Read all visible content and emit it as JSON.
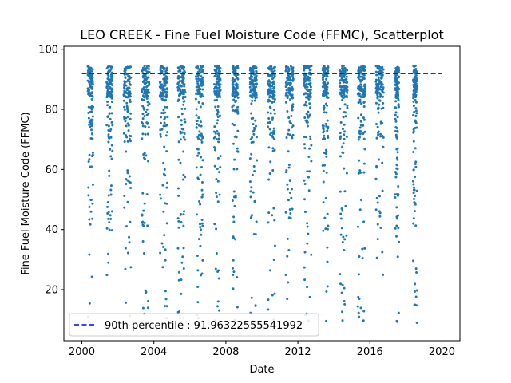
{
  "chart_data": {
    "type": "scatter",
    "title": "LEO CREEK - Fine Fuel Moisture Code (FFMC), Scatterplot",
    "xlabel": "Date",
    "ylabel": "Fine Fuel Moisture Code (FFMC)",
    "xlim": [
      1999.0,
      2021.0
    ],
    "ylim": [
      3,
      101
    ],
    "xticks": [
      2000,
      2004,
      2008,
      2012,
      2016,
      2020
    ],
    "xtick_labels": [
      "2000",
      "2004",
      "2008",
      "2012",
      "2016",
      "2020"
    ],
    "yticks": [
      20,
      40,
      60,
      80,
      100
    ],
    "ytick_labels": [
      "20",
      "40",
      "60",
      "80",
      "100"
    ],
    "grid": false,
    "legend_position": "lower-left",
    "point_color": "#1f77b4",
    "seasons": [
      {
        "year": 2000,
        "start": 2000.33,
        "end": 2000.62
      },
      {
        "year": 2001,
        "start": 2001.38,
        "end": 2001.7
      },
      {
        "year": 2002,
        "start": 2002.33,
        "end": 2002.73
      },
      {
        "year": 2003,
        "start": 2003.33,
        "end": 2003.75
      },
      {
        "year": 2004,
        "start": 2004.33,
        "end": 2004.76
      },
      {
        "year": 2005,
        "start": 2005.33,
        "end": 2005.75
      },
      {
        "year": 2006,
        "start": 2006.33,
        "end": 2006.73
      },
      {
        "year": 2007,
        "start": 2007.35,
        "end": 2007.7
      },
      {
        "year": 2008,
        "start": 2008.35,
        "end": 2008.68
      },
      {
        "year": 2009,
        "start": 2009.33,
        "end": 2009.72
      },
      {
        "year": 2010,
        "start": 2010.33,
        "end": 2010.73
      },
      {
        "year": 2011,
        "start": 2011.33,
        "end": 2011.75
      },
      {
        "year": 2012,
        "start": 2012.33,
        "end": 2012.75
      },
      {
        "year": 2013,
        "start": 2013.38,
        "end": 2013.68
      },
      {
        "year": 2014,
        "start": 2014.33,
        "end": 2014.75
      },
      {
        "year": 2015,
        "start": 2015.33,
        "end": 2015.73
      },
      {
        "year": 2016,
        "start": 2016.33,
        "end": 2016.76
      },
      {
        "year": 2017,
        "start": 2017.4,
        "end": 2017.62
      },
      {
        "year": 2018,
        "start": 2018.4,
        "end": 2018.62
      }
    ],
    "series": [
      {
        "kind": "reference_line",
        "name": "90th percentile : 91.96322555541992",
        "y": 91.96322555541992,
        "x_range": [
          2000.0,
          2020.0
        ],
        "color": "#0000ff",
        "style": "dashed"
      }
    ]
  }
}
